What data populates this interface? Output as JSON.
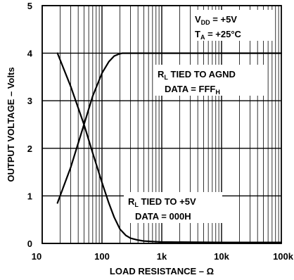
{
  "chart_data": {
    "type": "line",
    "title": "",
    "xlabel": "LOAD RESISTANCE – Ω",
    "ylabel": "OUTPUT VOLTAGE – Volts",
    "xscale": "log",
    "xlim": [
      10,
      100000
    ],
    "ylim": [
      0,
      5
    ],
    "grid": true,
    "x_tick_labels": [
      "10",
      "100",
      "1k",
      "10k",
      "100k"
    ],
    "y_tick_labels": [
      "0",
      "1",
      "2",
      "3",
      "4",
      "5"
    ],
    "series": [
      {
        "x": [
          18,
          30,
          50,
          70,
          100,
          130,
          160,
          190,
          220,
          300,
          500,
          1000,
          10000,
          100000
        ],
        "y": [
          0.85,
          1.6,
          2.5,
          3.1,
          3.58,
          3.82,
          3.94,
          3.98,
          4.0,
          4.0,
          4.0,
          4.0,
          4.0,
          4.0
        ]
      },
      {
        "x": [
          18,
          30,
          50,
          70,
          100,
          130,
          160,
          200,
          250,
          300,
          400,
          500,
          700,
          1000,
          10000,
          100000
        ],
        "y": [
          4.0,
          3.3,
          2.5,
          1.9,
          1.28,
          0.85,
          0.55,
          0.3,
          0.17,
          0.11,
          0.07,
          0.05,
          0.04,
          0.03,
          0.02,
          0.02
        ]
      }
    ],
    "annotations": {
      "vdd": {
        "main": "V",
        "sub": "DD",
        "rest": " = +5V"
      },
      "ta": {
        "main": "T",
        "sub": "A",
        "rest": " = +25°C"
      },
      "rl_agnd": {
        "main": "R",
        "sub": "L",
        "rest": " TIED TO AGND"
      },
      "data_fff": {
        "main": "DATA = FFF",
        "sub": "H"
      },
      "rl_5v": {
        "main": "R",
        "sub": "L",
        "rest": " TIED TO +5V"
      },
      "data_000": {
        "main": "DATA = 000H"
      }
    }
  }
}
